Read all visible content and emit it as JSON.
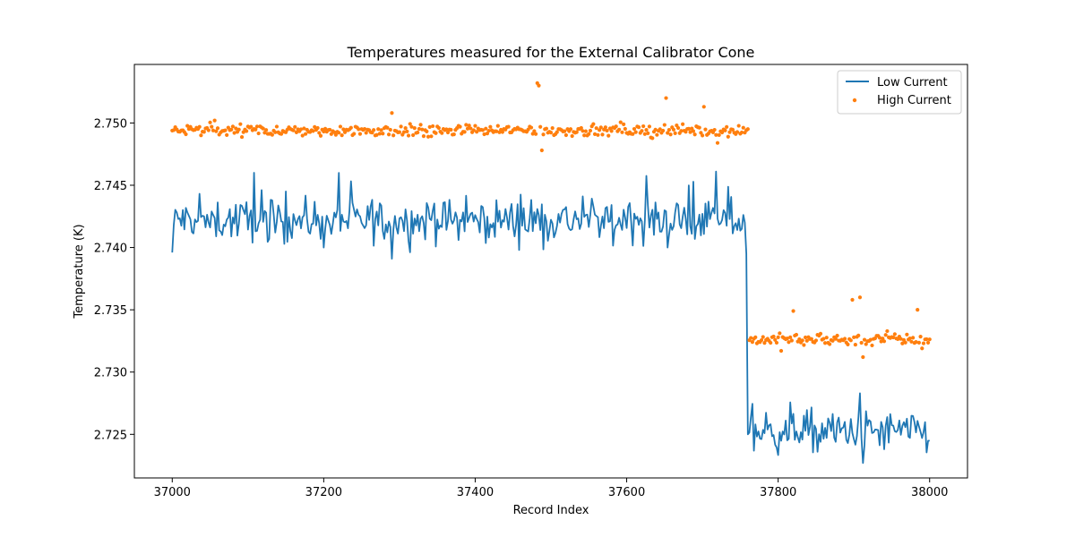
{
  "chart_data": {
    "type": "line",
    "title": "Temperatures measured for the External Calibrator Cone",
    "xlabel": "Record Index",
    "ylabel": "Temperature (K)",
    "xlim": [
      36950,
      38050
    ],
    "ylim": [
      2.7215,
      2.7547
    ],
    "x_ticks": [
      37000,
      37200,
      37400,
      37600,
      37800,
      38000
    ],
    "y_ticks": [
      2.725,
      2.73,
      2.735,
      2.74,
      2.745,
      2.75
    ],
    "x_tick_labels": [
      "37000",
      "37200",
      "37400",
      "37600",
      "37800",
      "38000"
    ],
    "y_tick_labels": [
      "2.725",
      "2.730",
      "2.735",
      "2.740",
      "2.745",
      "2.750"
    ],
    "grid": false,
    "legend": {
      "position": "top-right",
      "entries": [
        "Low Current",
        "High Current"
      ]
    },
    "series": [
      {
        "name": "Low Current",
        "style": "line",
        "color": "#1f77b4",
        "segments": [
          {
            "x_range": [
              37000,
              37758
            ],
            "baseline": 2.7422,
            "noise": 0.0009
          },
          {
            "x_range": [
              37758,
              38000
            ],
            "baseline": 2.7252,
            "noise": 0.0009
          }
        ],
        "points": [
          [
            37000,
            2.7396
          ],
          [
            37002,
            2.7418
          ],
          [
            37108,
            2.746
          ],
          [
            37290,
            2.7391
          ],
          [
            37483,
            2.7458
          ],
          [
            37487,
            2.7395
          ],
          [
            37573,
            2.744
          ],
          [
            37718,
            2.7461
          ],
          [
            37752,
            2.7415
          ],
          [
            37756,
            2.742
          ],
          [
            37758,
            2.7395
          ],
          [
            37760,
            2.725
          ],
          [
            37785,
            2.7228
          ],
          [
            37908,
            2.7283
          ],
          [
            37912,
            2.7227
          ],
          [
            37995,
            2.7279
          ],
          [
            38000,
            2.7245
          ]
        ]
      },
      {
        "name": "High Current",
        "style": "scatter",
        "color": "#ff7f0e",
        "segments": [
          {
            "x_range": [
              37000,
              37760
            ],
            "baseline": 2.7494,
            "noise": 0.00025
          },
          {
            "x_range": [
              37760,
              38000
            ],
            "baseline": 2.7326,
            "noise": 0.00025
          }
        ],
        "points": [
          [
            37056,
            2.7502
          ],
          [
            37290,
            2.7508
          ],
          [
            37405,
            2.7506
          ],
          [
            37482,
            2.7532
          ],
          [
            37484,
            2.753
          ],
          [
            37488,
            2.7478
          ],
          [
            37571,
            2.7522
          ],
          [
            37652,
            2.752
          ],
          [
            37702,
            2.7513
          ],
          [
            37745,
            2.7509
          ],
          [
            37820,
            2.7349
          ],
          [
            37898,
            2.7358
          ],
          [
            37908,
            2.736
          ],
          [
            37912,
            2.7312
          ],
          [
            37984,
            2.735
          ],
          [
            37990,
            2.7319
          ]
        ]
      }
    ]
  }
}
